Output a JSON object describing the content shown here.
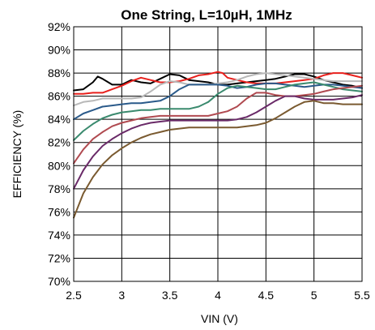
{
  "chart_data": {
    "type": "line",
    "title": "One String, L=10µH, 1MHz",
    "xlabel": "VIN (V)",
    "ylabel": "EFFICIENCY (%)",
    "xlim": [
      2.5,
      5.5
    ],
    "ylim": [
      70,
      92
    ],
    "xticks": [
      "2.5",
      "3",
      "3.5",
      "4",
      "4.5",
      "5",
      "5.5"
    ],
    "yticks": [
      "70%",
      "72%",
      "74%",
      "76%",
      "78%",
      "80%",
      "82%",
      "84%",
      "86%",
      "88%",
      "90%",
      "92%"
    ],
    "grid": true,
    "series": [
      {
        "color": "#000000",
        "points": [
          [
            2.5,
            86.5
          ],
          [
            2.6,
            86.6
          ],
          [
            2.7,
            87.2
          ],
          [
            2.75,
            87.7
          ],
          [
            2.8,
            87.5
          ],
          [
            2.9,
            87.0
          ],
          [
            3.0,
            87.0
          ],
          [
            3.1,
            87.4
          ],
          [
            3.2,
            87.2
          ],
          [
            3.3,
            87.1
          ],
          [
            3.4,
            87.5
          ],
          [
            3.5,
            87.9
          ],
          [
            3.6,
            87.8
          ],
          [
            3.7,
            87.4
          ],
          [
            3.8,
            87.3
          ],
          [
            3.9,
            87.2
          ],
          [
            4.0,
            87.0
          ],
          [
            4.1,
            87.0
          ],
          [
            4.2,
            87.1
          ],
          [
            4.3,
            87.2
          ],
          [
            4.4,
            87.3
          ],
          [
            4.5,
            87.4
          ],
          [
            4.6,
            87.5
          ],
          [
            4.7,
            87.7
          ],
          [
            4.8,
            87.9
          ],
          [
            4.9,
            87.9
          ],
          [
            5.0,
            87.7
          ],
          [
            5.1,
            87.4
          ],
          [
            5.2,
            87.2
          ],
          [
            5.3,
            87.0
          ],
          [
            5.4,
            86.9
          ],
          [
            5.5,
            86.7
          ]
        ]
      },
      {
        "color": "#e8201c",
        "points": [
          [
            2.5,
            86.2
          ],
          [
            2.6,
            86.2
          ],
          [
            2.7,
            86.3
          ],
          [
            2.8,
            86.3
          ],
          [
            2.9,
            86.6
          ],
          [
            3.0,
            86.9
          ],
          [
            3.1,
            87.3
          ],
          [
            3.2,
            87.6
          ],
          [
            3.3,
            87.4
          ],
          [
            3.4,
            87.2
          ],
          [
            3.5,
            87.2
          ],
          [
            3.6,
            87.3
          ],
          [
            3.7,
            87.5
          ],
          [
            3.8,
            87.8
          ],
          [
            3.9,
            87.9
          ],
          [
            4.0,
            88.1
          ],
          [
            4.05,
            88.0
          ],
          [
            4.1,
            87.6
          ],
          [
            4.2,
            87.4
          ],
          [
            4.3,
            87.2
          ],
          [
            4.4,
            87.1
          ],
          [
            4.5,
            87.1
          ],
          [
            4.6,
            87.1
          ],
          [
            4.7,
            87.2
          ],
          [
            4.8,
            87.3
          ],
          [
            4.9,
            87.4
          ],
          [
            5.0,
            87.5
          ],
          [
            5.1,
            87.8
          ],
          [
            5.2,
            88.0
          ],
          [
            5.3,
            88.0
          ],
          [
            5.4,
            87.8
          ],
          [
            5.5,
            87.6
          ]
        ]
      },
      {
        "color": "#b8b8b8",
        "points": [
          [
            2.5,
            85.2
          ],
          [
            2.6,
            85.5
          ],
          [
            2.7,
            85.6
          ],
          [
            2.8,
            85.8
          ],
          [
            2.9,
            85.8
          ],
          [
            3.0,
            85.8
          ],
          [
            3.1,
            85.8
          ],
          [
            3.2,
            85.9
          ],
          [
            3.3,
            86.4
          ],
          [
            3.4,
            87.0
          ],
          [
            3.5,
            87.3
          ],
          [
            3.6,
            87.2
          ],
          [
            3.7,
            87.0
          ],
          [
            3.8,
            87.0
          ],
          [
            3.9,
            87.0
          ],
          [
            4.0,
            87.1
          ],
          [
            4.1,
            87.2
          ],
          [
            4.2,
            87.4
          ],
          [
            4.3,
            87.7
          ],
          [
            4.4,
            87.9
          ],
          [
            4.5,
            88.0
          ],
          [
            4.6,
            87.9
          ],
          [
            4.7,
            87.8
          ],
          [
            4.8,
            87.7
          ],
          [
            4.9,
            87.6
          ],
          [
            5.0,
            87.5
          ],
          [
            5.1,
            87.4
          ],
          [
            5.2,
            87.3
          ],
          [
            5.3,
            87.3
          ],
          [
            5.4,
            87.3
          ],
          [
            5.5,
            87.3
          ]
        ]
      },
      {
        "color": "#2a5a8a",
        "points": [
          [
            2.5,
            84.0
          ],
          [
            2.6,
            84.5
          ],
          [
            2.7,
            84.8
          ],
          [
            2.8,
            85.1
          ],
          [
            2.9,
            85.2
          ],
          [
            3.0,
            85.3
          ],
          [
            3.1,
            85.4
          ],
          [
            3.2,
            85.4
          ],
          [
            3.3,
            85.5
          ],
          [
            3.4,
            85.6
          ],
          [
            3.5,
            86.0
          ],
          [
            3.6,
            86.6
          ],
          [
            3.7,
            87.0
          ],
          [
            3.8,
            87.0
          ],
          [
            3.9,
            87.0
          ],
          [
            4.0,
            87.0
          ],
          [
            4.1,
            86.9
          ],
          [
            4.2,
            86.7
          ],
          [
            4.3,
            86.8
          ],
          [
            4.4,
            87.0
          ],
          [
            4.5,
            87.1
          ],
          [
            4.6,
            87.1
          ],
          [
            4.7,
            87.0
          ],
          [
            4.8,
            86.9
          ],
          [
            4.9,
            86.8
          ],
          [
            5.0,
            86.9
          ],
          [
            5.1,
            87.0
          ],
          [
            5.2,
            87.0
          ],
          [
            5.3,
            86.9
          ],
          [
            5.4,
            86.8
          ],
          [
            5.5,
            86.7
          ]
        ]
      },
      {
        "color": "#3a8a6e",
        "points": [
          [
            2.5,
            82.2
          ],
          [
            2.6,
            83.0
          ],
          [
            2.7,
            83.6
          ],
          [
            2.8,
            84.1
          ],
          [
            2.9,
            84.4
          ],
          [
            3.0,
            84.6
          ],
          [
            3.1,
            84.7
          ],
          [
            3.2,
            84.8
          ],
          [
            3.3,
            84.8
          ],
          [
            3.4,
            84.9
          ],
          [
            3.5,
            84.9
          ],
          [
            3.6,
            84.9
          ],
          [
            3.7,
            84.9
          ],
          [
            3.8,
            85.1
          ],
          [
            3.9,
            85.5
          ],
          [
            4.0,
            86.2
          ],
          [
            4.1,
            86.7
          ],
          [
            4.2,
            86.9
          ],
          [
            4.3,
            86.8
          ],
          [
            4.4,
            86.7
          ],
          [
            4.5,
            86.6
          ],
          [
            4.6,
            86.6
          ],
          [
            4.7,
            86.8
          ],
          [
            4.8,
            87.0
          ],
          [
            4.9,
            87.1
          ],
          [
            5.0,
            87.2
          ],
          [
            5.1,
            87.0
          ],
          [
            5.2,
            86.8
          ],
          [
            5.3,
            86.6
          ],
          [
            5.4,
            86.5
          ],
          [
            5.5,
            86.4
          ]
        ]
      },
      {
        "color": "#b04a50",
        "points": [
          [
            2.5,
            80.2
          ],
          [
            2.6,
            81.4
          ],
          [
            2.7,
            82.3
          ],
          [
            2.8,
            82.9
          ],
          [
            2.9,
            83.4
          ],
          [
            3.0,
            83.7
          ],
          [
            3.1,
            83.9
          ],
          [
            3.2,
            84.1
          ],
          [
            3.3,
            84.2
          ],
          [
            3.4,
            84.3
          ],
          [
            3.5,
            84.3
          ],
          [
            3.6,
            84.3
          ],
          [
            3.7,
            84.3
          ],
          [
            3.8,
            84.3
          ],
          [
            3.9,
            84.3
          ],
          [
            4.0,
            84.5
          ],
          [
            4.1,
            84.7
          ],
          [
            4.2,
            85.1
          ],
          [
            4.3,
            85.8
          ],
          [
            4.4,
            86.3
          ],
          [
            4.5,
            86.3
          ],
          [
            4.6,
            86.1
          ],
          [
            4.7,
            86.0
          ],
          [
            4.8,
            86.0
          ],
          [
            4.9,
            86.1
          ],
          [
            5.0,
            86.2
          ],
          [
            5.1,
            86.4
          ],
          [
            5.2,
            86.6
          ],
          [
            5.3,
            86.7
          ],
          [
            5.4,
            86.8
          ],
          [
            5.5,
            86.9
          ]
        ]
      },
      {
        "color": "#6a2a68",
        "points": [
          [
            2.5,
            78.0
          ],
          [
            2.6,
            79.6
          ],
          [
            2.7,
            80.8
          ],
          [
            2.8,
            81.7
          ],
          [
            2.9,
            82.3
          ],
          [
            3.0,
            82.8
          ],
          [
            3.1,
            83.2
          ],
          [
            3.2,
            83.5
          ],
          [
            3.3,
            83.7
          ],
          [
            3.4,
            83.8
          ],
          [
            3.5,
            83.9
          ],
          [
            3.6,
            83.9
          ],
          [
            3.7,
            83.9
          ],
          [
            3.8,
            83.9
          ],
          [
            3.9,
            83.9
          ],
          [
            4.0,
            83.9
          ],
          [
            4.1,
            83.9
          ],
          [
            4.2,
            84.0
          ],
          [
            4.3,
            84.2
          ],
          [
            4.4,
            84.6
          ],
          [
            4.5,
            85.1
          ],
          [
            4.6,
            85.6
          ],
          [
            4.7,
            86.0
          ],
          [
            4.8,
            86.0
          ],
          [
            4.9,
            85.8
          ],
          [
            5.0,
            85.7
          ],
          [
            5.1,
            85.7
          ],
          [
            5.2,
            85.7
          ],
          [
            5.3,
            85.8
          ],
          [
            5.4,
            85.9
          ],
          [
            5.5,
            86.1
          ]
        ]
      },
      {
        "color": "#7a5a30",
        "points": [
          [
            2.5,
            75.5
          ],
          [
            2.6,
            77.6
          ],
          [
            2.7,
            79.0
          ],
          [
            2.8,
            80.1
          ],
          [
            2.9,
            80.9
          ],
          [
            3.0,
            81.5
          ],
          [
            3.1,
            82.0
          ],
          [
            3.2,
            82.4
          ],
          [
            3.3,
            82.7
          ],
          [
            3.4,
            82.9
          ],
          [
            3.5,
            83.1
          ],
          [
            3.6,
            83.2
          ],
          [
            3.7,
            83.3
          ],
          [
            3.8,
            83.3
          ],
          [
            3.9,
            83.3
          ],
          [
            4.0,
            83.3
          ],
          [
            4.1,
            83.3
          ],
          [
            4.2,
            83.3
          ],
          [
            4.3,
            83.4
          ],
          [
            4.4,
            83.5
          ],
          [
            4.5,
            83.7
          ],
          [
            4.6,
            84.1
          ],
          [
            4.7,
            84.6
          ],
          [
            4.8,
            85.1
          ],
          [
            4.9,
            85.5
          ],
          [
            5.0,
            85.6
          ],
          [
            5.1,
            85.4
          ],
          [
            5.2,
            85.4
          ],
          [
            5.3,
            85.3
          ],
          [
            5.4,
            85.3
          ],
          [
            5.5,
            85.3
          ]
        ]
      }
    ]
  }
}
